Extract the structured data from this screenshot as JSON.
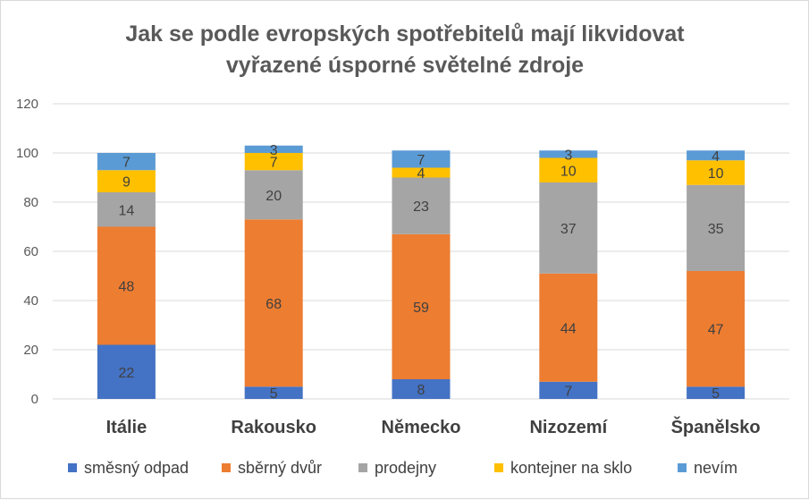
{
  "chart_data": {
    "type": "bar",
    "stacked": true,
    "title": "Jak se podle evropských spotřebitelů mají likvidovat vyřazené úsporné světelné zdroje",
    "title_lines": [
      "Jak se podle evropských spotřebitelů mají likvidovat",
      "vyřazené úsporné světelné zdroje"
    ],
    "xlabel": "",
    "ylabel": "",
    "ylim": [
      0,
      120
    ],
    "yticks": [
      0,
      20,
      40,
      60,
      80,
      100,
      120
    ],
    "grid": true,
    "legend_position": "bottom",
    "categories": [
      "Itálie",
      "Rakousko",
      "Německo",
      "Nizozemí",
      "Španělsko"
    ],
    "series": [
      {
        "name": "směsný odpad",
        "color": "#4472c4",
        "values": [
          22,
          5,
          8,
          7,
          5
        ]
      },
      {
        "name": "sběrný dvůr",
        "color": "#ed7d31",
        "values": [
          48,
          68,
          59,
          44,
          47
        ]
      },
      {
        "name": "prodejny",
        "color": "#a5a5a5",
        "values": [
          14,
          20,
          23,
          37,
          35
        ]
      },
      {
        "name": "kontejner na sklo",
        "color": "#ffc000",
        "values": [
          9,
          7,
          4,
          10,
          10
        ]
      },
      {
        "name": "nevím",
        "color": "#5b9bd5",
        "values": [
          7,
          3,
          7,
          3,
          4
        ]
      }
    ]
  }
}
